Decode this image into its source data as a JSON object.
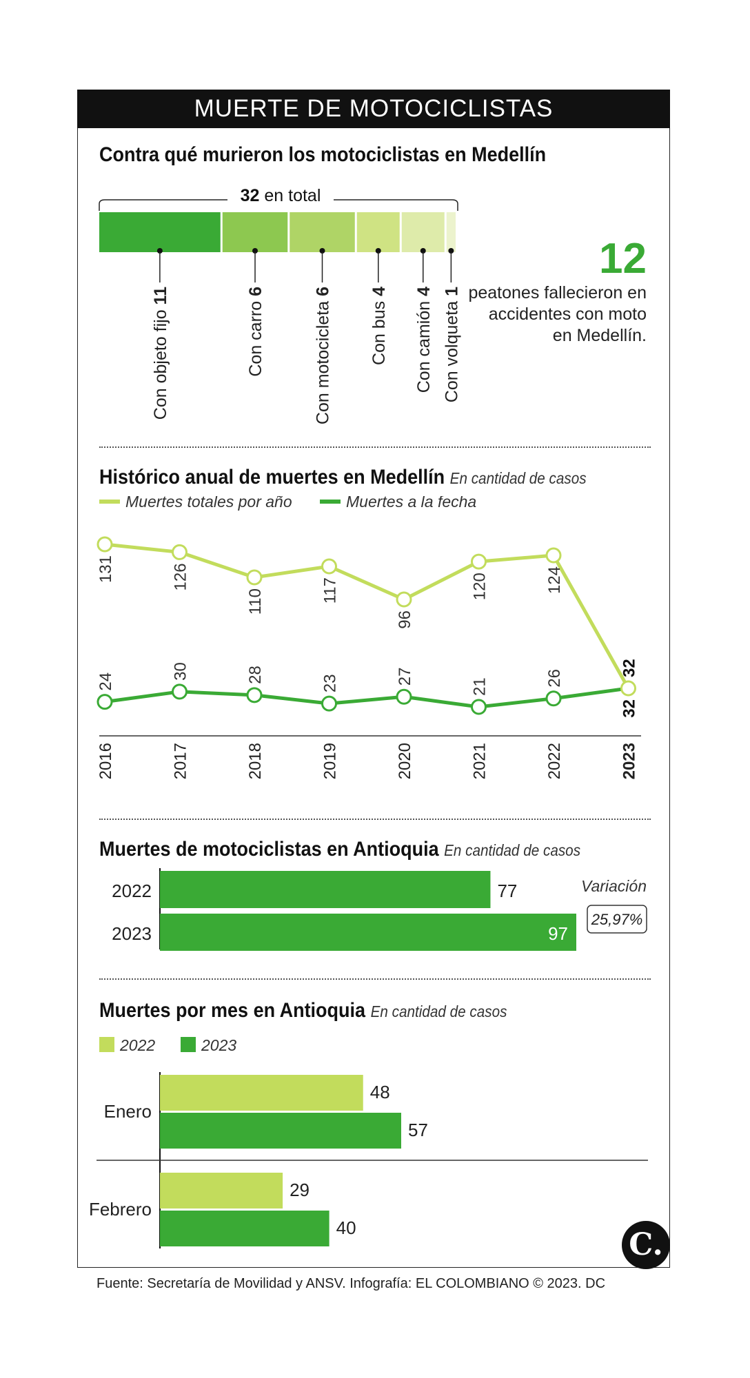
{
  "header": {
    "title": "MUERTE DE MOTOCICLISTAS"
  },
  "colors": {
    "dark_green": "#3aaa35",
    "light_green": "#c2dc5c",
    "logo_black": "#111111"
  },
  "section1": {
    "title": "Contra qué murieron los motociclistas en Medellín",
    "total_value": "32",
    "total_suffix": " en total",
    "segments": [
      {
        "label": "Con objeto fijo",
        "value": 11,
        "color": "#3aaa35"
      },
      {
        "label": "Con carro",
        "value": 6,
        "color": "#8dc850"
      },
      {
        "label": "Con motocicleta",
        "value": 6,
        "color": "#afd466"
      },
      {
        "label": "Con bus",
        "value": 4,
        "color": "#cfe383"
      },
      {
        "label": "Con camión",
        "value": 4,
        "color": "#deebaa"
      },
      {
        "label": "Con volqueta",
        "value": 1,
        "color": "#ecf3cd"
      }
    ],
    "pedestrians_number": "12",
    "pedestrians_text": "peatones fallecieron en accidentes con moto en Medellín."
  },
  "section2": {
    "title": "Histórico anual de muertes en Medellín",
    "subtitle": "En cantidad de casos"
  },
  "section3": {
    "title": "Muertes de motociclistas en Antioquia",
    "subtitle": "En cantidad de casos",
    "variation_label": "Variación",
    "variation_value": "25,97%"
  },
  "section4": {
    "title": "Muertes por mes en Antioquia",
    "subtitle": "En cantidad de casos"
  },
  "footer": {
    "source": "Fuente: Secretaría de Movilidad y ANSV. Infografía: EL COLOMBIANO © 2023. DC",
    "logo": "C."
  },
  "chart_data": [
    {
      "type": "line",
      "x": [
        "2016",
        "2017",
        "2018",
        "2019",
        "2020",
        "2021",
        "2022",
        "2023"
      ],
      "series": [
        {
          "name": "Muertes totales por año",
          "color": "#c2dc5c",
          "values": [
            131,
            126,
            110,
            117,
            96,
            120,
            124,
            32
          ]
        },
        {
          "name": "Muertes a la fecha",
          "color": "#3aaa35",
          "values": [
            24,
            30,
            28,
            23,
            27,
            21,
            26,
            32
          ]
        }
      ]
    },
    {
      "type": "bar",
      "orientation": "horizontal",
      "categories": [
        "2022",
        "2023"
      ],
      "values": [
        77,
        97
      ],
      "color": "#3aaa35"
    },
    {
      "type": "bar",
      "orientation": "horizontal",
      "categories": [
        "Enero",
        "Febrero"
      ],
      "series": [
        {
          "name": "2022",
          "color": "#c2dc5c",
          "values": [
            48,
            29
          ]
        },
        {
          "name": "2023",
          "color": "#3aaa35",
          "values": [
            57,
            40
          ]
        }
      ]
    }
  ]
}
